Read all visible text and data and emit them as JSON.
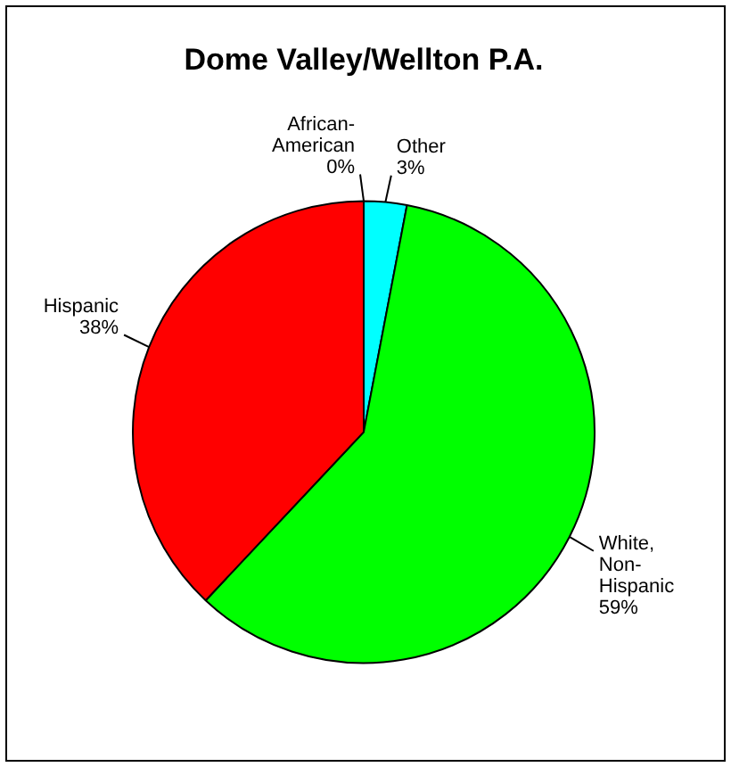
{
  "chart_data": {
    "type": "pie",
    "title": "Dome Valley/Wellton P.A.",
    "categories": [
      "Other",
      "White, Non-Hispanic",
      "Hispanic",
      "African-American"
    ],
    "values": [
      3,
      59,
      38,
      0
    ],
    "value_labels": [
      "3%",
      "59%",
      "38%",
      "0%"
    ],
    "colors": [
      "#00ffff",
      "#00ff00",
      "#ff0000",
      "#000080"
    ],
    "legend": false
  }
}
